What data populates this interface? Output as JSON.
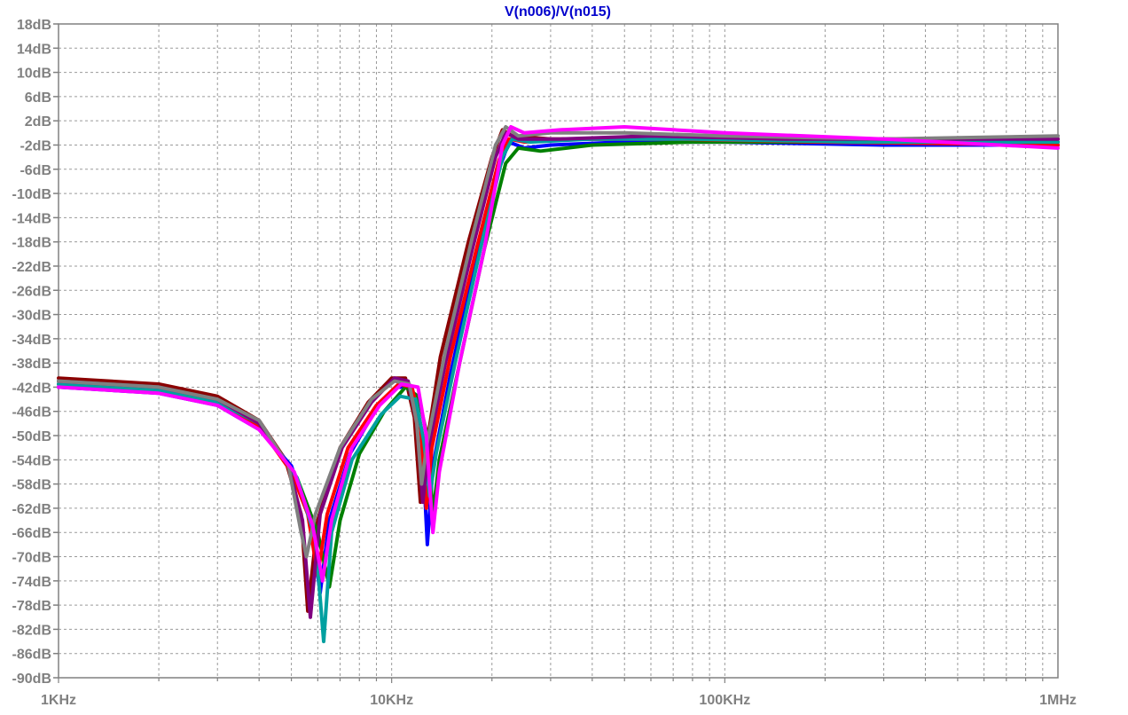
{
  "chart_data": {
    "type": "line",
    "title": "V(n006)/V(n015)",
    "xlabel": "",
    "ylabel": "",
    "x_scale": "log",
    "xlim": [
      1000,
      1000000
    ],
    "ylim": [
      -90,
      18
    ],
    "grid": true,
    "x_tick_labels": [
      "1KHz",
      "10KHz",
      "100KHz",
      "1MHz"
    ],
    "y_tick_labels": [
      "18dB",
      "14dB",
      "10dB",
      "6dB",
      "2dB",
      "-2dB",
      "-6dB",
      "-10dB",
      "-14dB",
      "-18dB",
      "-22dB",
      "-26dB",
      "-30dB",
      "-34dB",
      "-38dB",
      "-42dB",
      "-46dB",
      "-50dB",
      "-54dB",
      "-58dB",
      "-62dB",
      "-66dB",
      "-70dB",
      "-74dB",
      "-78dB",
      "-82dB",
      "-86dB",
      "-90dB"
    ],
    "series": [
      {
        "color": "#8B0000",
        "values": [
          [
            1000,
            -40.5
          ],
          [
            2000,
            -41.5
          ],
          [
            3000,
            -43.5
          ],
          [
            4000,
            -47.5
          ],
          [
            4800,
            -54
          ],
          [
            5350,
            -63
          ],
          [
            5600,
            -79
          ],
          [
            6000,
            -64
          ],
          [
            7000,
            -52
          ],
          [
            8500,
            -44.5
          ],
          [
            10000,
            -40.5
          ],
          [
            11000,
            -40.5
          ],
          [
            11700,
            -47
          ],
          [
            12200,
            -61
          ],
          [
            12700,
            -52
          ],
          [
            14000,
            -37
          ],
          [
            17000,
            -18
          ],
          [
            20000,
            -4
          ],
          [
            21500,
            0.5
          ],
          [
            23000,
            -0.5
          ],
          [
            30000,
            -1
          ],
          [
            50000,
            -1
          ],
          [
            100000,
            -1
          ],
          [
            300000,
            -1
          ],
          [
            1000000,
            -1
          ]
        ]
      },
      {
        "color": "#0000FF",
        "values": [
          [
            1000,
            -42
          ],
          [
            2000,
            -43
          ],
          [
            3000,
            -45
          ],
          [
            4000,
            -49
          ],
          [
            5000,
            -55
          ],
          [
            5700,
            -64
          ],
          [
            6100,
            -76
          ],
          [
            6500,
            -64
          ],
          [
            7500,
            -53
          ],
          [
            9000,
            -45.5
          ],
          [
            10300,
            -42
          ],
          [
            11500,
            -42
          ],
          [
            12300,
            -49
          ],
          [
            12800,
            -68
          ],
          [
            13300,
            -55
          ],
          [
            15000,
            -40
          ],
          [
            18000,
            -20
          ],
          [
            21000,
            -6
          ],
          [
            22500,
            -1.5
          ],
          [
            25000,
            -2.5
          ],
          [
            30000,
            -2
          ],
          [
            50000,
            -1.5
          ],
          [
            100000,
            -1.5
          ],
          [
            300000,
            -2
          ],
          [
            1000000,
            -2
          ]
        ]
      },
      {
        "color": "#008000",
        "values": [
          [
            1000,
            -41
          ],
          [
            2000,
            -42
          ],
          [
            3000,
            -44
          ],
          [
            4000,
            -48
          ],
          [
            5200,
            -57
          ],
          [
            6000,
            -66
          ],
          [
            6500,
            -75
          ],
          [
            7000,
            -64
          ],
          [
            8000,
            -53
          ],
          [
            9500,
            -46
          ],
          [
            11000,
            -42
          ],
          [
            12000,
            -43.5
          ],
          [
            12800,
            -50
          ],
          [
            13300,
            -63
          ],
          [
            13900,
            -54
          ],
          [
            16000,
            -38
          ],
          [
            19000,
            -19
          ],
          [
            22000,
            -5
          ],
          [
            24000,
            -2.5
          ],
          [
            28000,
            -3
          ],
          [
            40000,
            -2
          ],
          [
            80000,
            -1.5
          ],
          [
            200000,
            -1.5
          ],
          [
            1000000,
            -1.5
          ]
        ]
      },
      {
        "color": "#FF0000",
        "values": [
          [
            1000,
            -41.5
          ],
          [
            2000,
            -42.5
          ],
          [
            3000,
            -44.5
          ],
          [
            4000,
            -48.5
          ],
          [
            5000,
            -56
          ],
          [
            5600,
            -63
          ],
          [
            6000,
            -73
          ],
          [
            6400,
            -63
          ],
          [
            7400,
            -52
          ],
          [
            9000,
            -45
          ],
          [
            10500,
            -41.5
          ],
          [
            11500,
            -42
          ],
          [
            12200,
            -48
          ],
          [
            12700,
            -62
          ],
          [
            13200,
            -52
          ],
          [
            15000,
            -37
          ],
          [
            18000,
            -19
          ],
          [
            21000,
            -4.5
          ],
          [
            22500,
            -1
          ],
          [
            25000,
            -1.5
          ],
          [
            35000,
            -1
          ],
          [
            70000,
            -1
          ],
          [
            200000,
            -1.5
          ],
          [
            1000000,
            -2
          ]
        ]
      },
      {
        "color": "#00A0A0",
        "values": [
          [
            1000,
            -41.5
          ],
          [
            2000,
            -42.5
          ],
          [
            3000,
            -44.5
          ],
          [
            4000,
            -48
          ],
          [
            5200,
            -57
          ],
          [
            5900,
            -67
          ],
          [
            6250,
            -84
          ],
          [
            6600,
            -66
          ],
          [
            7600,
            -54
          ],
          [
            9300,
            -46.5
          ],
          [
            10600,
            -43.5
          ],
          [
            11800,
            -44
          ],
          [
            12500,
            -51
          ],
          [
            13000,
            -60
          ],
          [
            13600,
            -53
          ],
          [
            15500,
            -38
          ],
          [
            18500,
            -19
          ],
          [
            21500,
            -4
          ],
          [
            23000,
            -1
          ],
          [
            26000,
            -1.5
          ],
          [
            40000,
            -1
          ],
          [
            80000,
            -1
          ],
          [
            250000,
            -1.5
          ],
          [
            1000000,
            -1.5
          ]
        ]
      },
      {
        "color": "#800080",
        "values": [
          [
            1000,
            -41
          ],
          [
            2000,
            -42
          ],
          [
            3000,
            -44
          ],
          [
            4000,
            -48
          ],
          [
            4900,
            -55
          ],
          [
            5400,
            -64
          ],
          [
            5700,
            -80
          ],
          [
            6100,
            -63
          ],
          [
            7100,
            -52
          ],
          [
            8700,
            -44.5
          ],
          [
            10200,
            -40.5
          ],
          [
            11200,
            -41
          ],
          [
            11900,
            -48
          ],
          [
            12400,
            -61
          ],
          [
            12900,
            -52
          ],
          [
            14500,
            -38
          ],
          [
            17500,
            -19
          ],
          [
            20500,
            -4
          ],
          [
            22000,
            0
          ],
          [
            24000,
            -1
          ],
          [
            32000,
            -1
          ],
          [
            60000,
            -0.5
          ],
          [
            150000,
            -1
          ],
          [
            1000000,
            -1
          ]
        ]
      },
      {
        "color": "#808080",
        "values": [
          [
            1000,
            -41
          ],
          [
            2000,
            -42
          ],
          [
            3000,
            -44
          ],
          [
            4000,
            -47.5
          ],
          [
            4900,
            -55
          ],
          [
            5350,
            -66
          ],
          [
            5550,
            -70
          ],
          [
            5900,
            -63
          ],
          [
            7000,
            -52
          ],
          [
            8700,
            -44
          ],
          [
            10200,
            -41
          ],
          [
            11300,
            -41.5
          ],
          [
            11900,
            -48
          ],
          [
            12300,
            -58
          ],
          [
            12800,
            -51
          ],
          [
            14500,
            -36
          ],
          [
            17500,
            -17
          ],
          [
            20500,
            -2
          ],
          [
            22000,
            1
          ],
          [
            24000,
            -0.5
          ],
          [
            30000,
            0
          ],
          [
            50000,
            0
          ],
          [
            100000,
            -0.5
          ],
          [
            300000,
            -1
          ],
          [
            1000000,
            -0.5
          ]
        ]
      },
      {
        "color": "#FF00FF",
        "values": [
          [
            1000,
            -42
          ],
          [
            2000,
            -43
          ],
          [
            3000,
            -45
          ],
          [
            4000,
            -49
          ],
          [
            5100,
            -56
          ],
          [
            5800,
            -65
          ],
          [
            6200,
            -74
          ],
          [
            6600,
            -64
          ],
          [
            7600,
            -52
          ],
          [
            9200,
            -45
          ],
          [
            10700,
            -41.5
          ],
          [
            12000,
            -42
          ],
          [
            12700,
            -50
          ],
          [
            13300,
            -66
          ],
          [
            13900,
            -56
          ],
          [
            16000,
            -38
          ],
          [
            19000,
            -19
          ],
          [
            21500,
            -2
          ],
          [
            22800,
            1
          ],
          [
            25000,
            0
          ],
          [
            32000,
            0.5
          ],
          [
            50000,
            1
          ],
          [
            100000,
            0
          ],
          [
            300000,
            -1
          ],
          [
            1000000,
            -2.5
          ]
        ]
      }
    ]
  }
}
